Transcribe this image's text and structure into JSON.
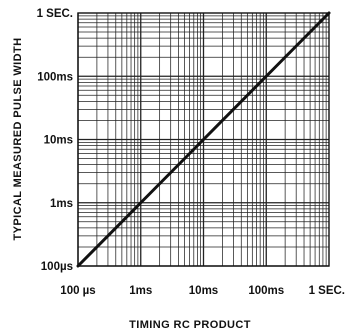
{
  "chart_data": {
    "type": "line",
    "title": "",
    "xlabel": "TIMING RC PRODUCT",
    "ylabel": "TYPICAL MEASURED PULSE WIDTH",
    "x_scale": "log",
    "y_scale": "log",
    "xlim": [
      0.0001,
      1
    ],
    "ylim": [
      0.0001,
      1
    ],
    "grid": true,
    "x_tick_labels": [
      {
        "value": 0.0001,
        "label": "100 µs"
      },
      {
        "value": 0.001,
        "label": "1ms"
      },
      {
        "value": 0.01,
        "label": "10ms"
      },
      {
        "value": 0.1,
        "label": "100ms"
      },
      {
        "value": 1,
        "label": "1 SEC."
      }
    ],
    "y_tick_labels": [
      {
        "value": 0.0001,
        "label": "100µs"
      },
      {
        "value": 0.001,
        "label": "1ms"
      },
      {
        "value": 0.01,
        "label": "10ms"
      },
      {
        "value": 0.1,
        "label": "100ms"
      },
      {
        "value": 1,
        "label": "1 SEC."
      }
    ],
    "series": [
      {
        "x": [
          0.0001,
          0.001,
          0.01,
          0.1,
          1
        ],
        "y": [
          0.0001,
          0.001,
          0.01,
          0.1,
          1
        ]
      }
    ],
    "colors": {
      "line": "#111111",
      "grid": "#222222",
      "background": "#ffffff"
    }
  }
}
